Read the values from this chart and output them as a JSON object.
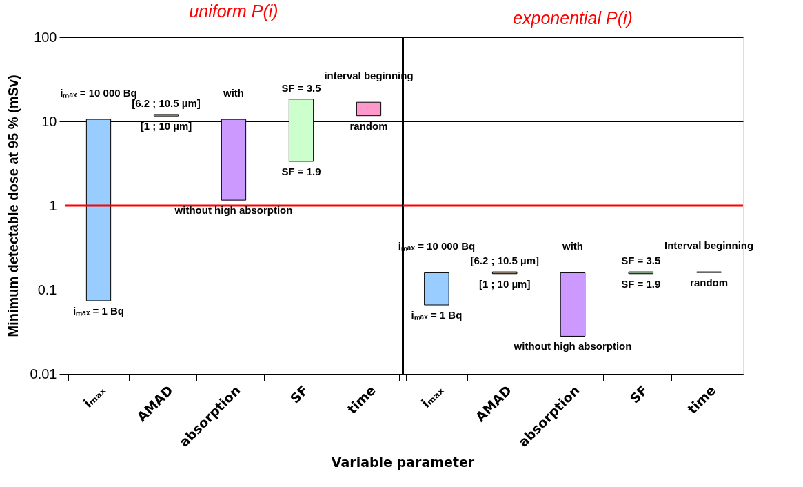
{
  "chart_data": [
    {
      "type": "bar",
      "title": "uniform P(i)",
      "xlabel": "Variable parameter",
      "ylabel": "Minimum detectable dose at 95 % (mSv)",
      "categories": [
        "iₘₐₓ",
        "AMAD",
        "absorption",
        "SF",
        "time"
      ],
      "base": [
        0.074,
        11.6,
        1.16,
        3.35,
        11.7
      ],
      "values": [
        10.5,
        0.5,
        9.4,
        15,
        5.2
      ],
      "colors": [
        "#99ccff",
        "#e8c088",
        "#cc99ff",
        "#ccffcc",
        "#ff99cc"
      ],
      "log": true,
      "ylim": [
        0.01,
        100
      ],
      "yticks": [
        0.01,
        0.1,
        1,
        10,
        100
      ],
      "grid": "y",
      "ref_lines": [
        {
          "axis": "y",
          "value": 1,
          "color": "#ff0000"
        }
      ],
      "annotations": [
        {
          "text": "iₘₐₓ = 10 000 Bq",
          "x": "iₘₐₓ",
          "y": 10.6
        },
        {
          "text": "iₘₐₓ = 1 Bq",
          "x": "iₘₐₓ",
          "y": 0.074
        },
        {
          "text": "[6.2 ; 10.5 µm]",
          "x": "AMAD",
          "y": 12.1
        },
        {
          "text": "[1 ; 10 µm]",
          "x": "AMAD",
          "y": 11.6
        },
        {
          "text": "with",
          "x": "absorption",
          "y": 10.56
        },
        {
          "text": "without high absorption",
          "x": "absorption",
          "y": 1.16
        },
        {
          "text": "SF = 3.5",
          "x": "SF",
          "y": 18.35
        },
        {
          "text": "SF = 1.9",
          "x": "SF",
          "y": 3.35
        },
        {
          "text": "interval beginning",
          "x": "time",
          "y": 16.9
        },
        {
          "text": "random",
          "x": "time",
          "y": 11.7
        }
      ]
    },
    {
      "type": "bar",
      "title": "exponential P(i)",
      "categories": [
        "iₘₐₓ",
        "AMAD",
        "absorption",
        "SF",
        "time"
      ],
      "base": [
        0.066,
        0.155,
        0.028,
        0.155,
        0.16
      ],
      "values": [
        0.093,
        0.008,
        0.131,
        0.008,
        0.003
      ],
      "colors": [
        "#99ccff",
        "#8b7b6b",
        "#cc99ff",
        "#7f9f7f",
        "#000000"
      ],
      "log": true,
      "ylim": [
        0.01,
        100
      ],
      "yticks": [
        0.01,
        0.1,
        1,
        10,
        100
      ],
      "grid": "y",
      "tick_labels": "x",
      "ref_lines": [
        {
          "axis": "y",
          "value": 1,
          "color": "#ff0000"
        }
      ],
      "annotations": [
        {
          "text": "iₘₐₓ = 10 000 Bq",
          "x": "iₘₐₓ",
          "y": 0.159
        },
        {
          "text": "iₘₐₓ = 1 Bq",
          "x": "iₘₐₓ",
          "y": 0.066
        },
        {
          "text": "[6.2 ; 10.5 µm]",
          "x": "AMAD",
          "y": 0.163
        },
        {
          "text": "[1 ; 10 µm]",
          "x": "AMAD",
          "y": 0.155
        },
        {
          "text": "with",
          "x": "absorption",
          "y": 0.159
        },
        {
          "text": "without high absorption",
          "x": "absorption",
          "y": 0.028
        },
        {
          "text": "SF = 3.5",
          "x": "SF",
          "y": 0.163
        },
        {
          "text": "SF = 1.9",
          "x": "SF",
          "y": 0.155
        },
        {
          "text": "Interval beginning",
          "x": "time",
          "y": 0.163
        },
        {
          "text": "random",
          "x": "time",
          "y": 0.16
        }
      ]
    }
  ]
}
